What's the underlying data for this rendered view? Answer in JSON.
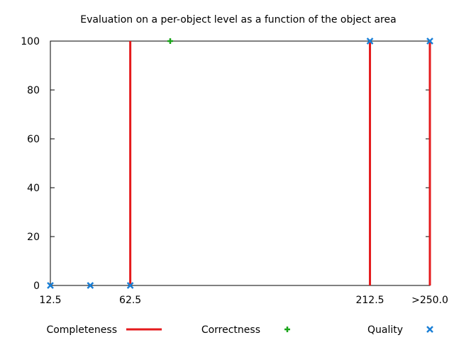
{
  "chart_data": {
    "type": "scatter",
    "title": "Evaluation on a per-object level as a function of the object area",
    "xlabel": "",
    "ylabel": "",
    "xlim": [
      12.5,
      250
    ],
    "ylim": [
      0,
      100
    ],
    "x_ticks": [
      {
        "value": 12.5,
        "label": "12.5"
      },
      {
        "value": 62.5,
        "label": "62.5"
      },
      {
        "value": 212.5,
        "label": "212.5"
      },
      {
        "value": 250,
        "label": ">250.0"
      }
    ],
    "y_ticks": [
      {
        "value": 0,
        "label": "0"
      },
      {
        "value": 20,
        "label": "20"
      },
      {
        "value": 40,
        "label": "40"
      },
      {
        "value": 60,
        "label": "60"
      },
      {
        "value": 80,
        "label": "80"
      },
      {
        "value": 100,
        "label": "100"
      }
    ],
    "grid": false,
    "legend_position": "bottom",
    "series": [
      {
        "name": "Completeness",
        "style": "impulses",
        "color": "#e41a1c",
        "points": [
          {
            "x": 62.5,
            "y": 100
          },
          {
            "x": 212.5,
            "y": 100
          },
          {
            "x": 250,
            "y": 100
          }
        ]
      },
      {
        "name": "Correctness",
        "style": "plus",
        "color": "#1aa51a",
        "points": [
          {
            "x": 87.5,
            "y": 100
          }
        ]
      },
      {
        "name": "Quality",
        "style": "cross",
        "color": "#1a7fd6",
        "points": [
          {
            "x": 12.5,
            "y": 0
          },
          {
            "x": 37.5,
            "y": 0
          },
          {
            "x": 62.5,
            "y": 0
          },
          {
            "x": 212.5,
            "y": 100
          },
          {
            "x": 250,
            "y": 100
          }
        ]
      }
    ]
  }
}
